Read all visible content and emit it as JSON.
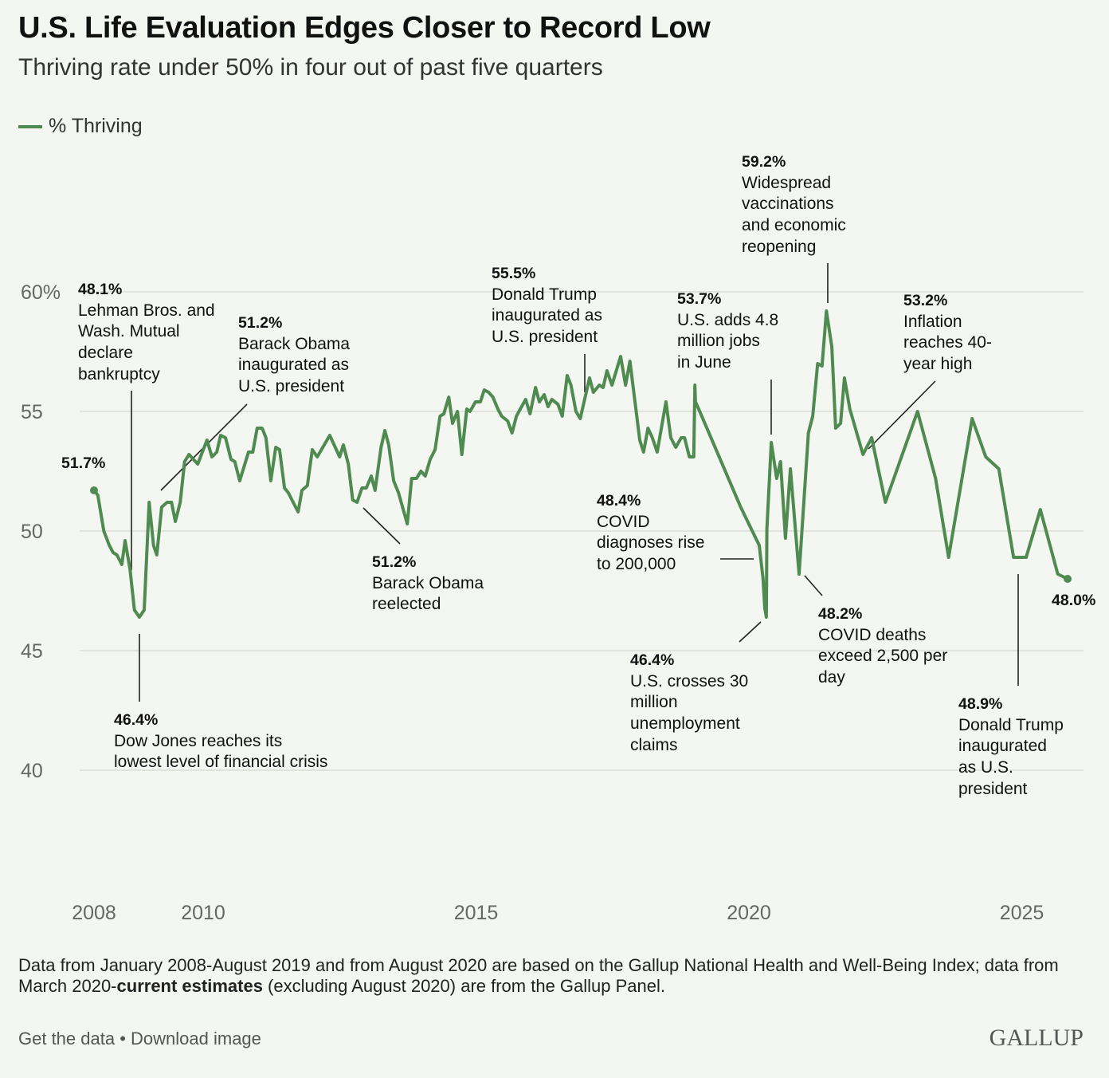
{
  "colors": {
    "line": "#4f8a50",
    "grid": "#d9ddd6",
    "background": "#f3f6f1",
    "axis_text": "#666666"
  },
  "chart_data": {
    "type": "line",
    "title": "U.S. Life Evaluation Edges Closer to Record Low",
    "subtitle": "Thriving rate under 50% in four out of past five quarters",
    "legend": [
      {
        "label": "% Thriving",
        "placement": "top-left"
      }
    ],
    "xlabel": "",
    "ylabel": "",
    "xlim": [
      2008,
      2026.2
    ],
    "ylim": [
      35,
      62
    ],
    "y_ticks": [
      {
        "value": 60,
        "label": "60%"
      },
      {
        "value": 55,
        "label": "55"
      },
      {
        "value": 50,
        "label": "50"
      },
      {
        "value": 45,
        "label": "45"
      },
      {
        "value": 40,
        "label": "40"
      }
    ],
    "x_ticks": [
      {
        "value": 2008,
        "label": "2008"
      },
      {
        "value": 2010,
        "label": "2010"
      },
      {
        "value": 2015,
        "label": "2015"
      },
      {
        "value": 2020,
        "label": "2020"
      },
      {
        "value": 2025,
        "label": "2025"
      }
    ],
    "grid": true,
    "series": [
      {
        "name": "% Thriving",
        "points": [
          [
            2008.0,
            51.7
          ],
          [
            2008.07,
            51.5
          ],
          [
            2008.18,
            50.0
          ],
          [
            2008.28,
            49.4
          ],
          [
            2008.35,
            49.1
          ],
          [
            2008.42,
            49.0
          ],
          [
            2008.51,
            48.6
          ],
          [
            2008.57,
            49.6
          ],
          [
            2008.66,
            48.4
          ],
          [
            2008.74,
            46.7
          ],
          [
            2008.83,
            46.4
          ],
          [
            2008.92,
            46.7
          ],
          [
            2009.01,
            51.2
          ],
          [
            2009.09,
            49.4
          ],
          [
            2009.15,
            49.0
          ],
          [
            2009.24,
            51.0
          ],
          [
            2009.34,
            51.2
          ],
          [
            2009.42,
            51.2
          ],
          [
            2009.49,
            50.4
          ],
          [
            2009.58,
            51.2
          ],
          [
            2009.66,
            52.9
          ],
          [
            2009.74,
            53.2
          ],
          [
            2009.9,
            52.8
          ],
          [
            2010.07,
            53.8
          ],
          [
            2010.16,
            53.1
          ],
          [
            2010.25,
            53.3
          ],
          [
            2010.32,
            54.0
          ],
          [
            2010.41,
            53.9
          ],
          [
            2010.51,
            53.0
          ],
          [
            2010.58,
            52.9
          ],
          [
            2010.67,
            52.1
          ],
          [
            2010.83,
            53.3
          ],
          [
            2010.91,
            53.3
          ],
          [
            2010.99,
            54.3
          ],
          [
            2011.08,
            54.3
          ],
          [
            2011.15,
            53.9
          ],
          [
            2011.24,
            52.1
          ],
          [
            2011.33,
            53.5
          ],
          [
            2011.4,
            53.4
          ],
          [
            2011.49,
            51.8
          ],
          [
            2011.56,
            51.6
          ],
          [
            2011.65,
            51.2
          ],
          [
            2011.74,
            50.8
          ],
          [
            2011.81,
            51.7
          ],
          [
            2011.91,
            51.9
          ],
          [
            2012.0,
            53.4
          ],
          [
            2012.09,
            53.1
          ],
          [
            2012.32,
            54.0
          ],
          [
            2012.5,
            53.1
          ],
          [
            2012.57,
            53.6
          ],
          [
            2012.66,
            52.8
          ],
          [
            2012.74,
            51.3
          ],
          [
            2012.82,
            51.2
          ],
          [
            2012.91,
            51.8
          ],
          [
            2012.99,
            51.8
          ],
          [
            2013.08,
            52.3
          ],
          [
            2013.15,
            51.7
          ],
          [
            2013.26,
            53.5
          ],
          [
            2013.33,
            54.2
          ],
          [
            2013.4,
            53.6
          ],
          [
            2013.49,
            52.1
          ],
          [
            2013.58,
            51.6
          ],
          [
            2013.74,
            50.3
          ],
          [
            2013.82,
            52.2
          ],
          [
            2013.91,
            52.2
          ],
          [
            2013.99,
            52.5
          ],
          [
            2014.07,
            52.3
          ],
          [
            2014.16,
            53.0
          ],
          [
            2014.25,
            53.4
          ],
          [
            2014.34,
            54.8
          ],
          [
            2014.41,
            54.9
          ],
          [
            2014.5,
            55.6
          ],
          [
            2014.57,
            54.5
          ],
          [
            2014.66,
            55.0
          ],
          [
            2014.74,
            53.2
          ],
          [
            2014.83,
            55.1
          ],
          [
            2014.89,
            55.0
          ],
          [
            2014.99,
            55.4
          ],
          [
            2015.08,
            55.4
          ],
          [
            2015.15,
            55.9
          ],
          [
            2015.23,
            55.8
          ],
          [
            2015.31,
            55.6
          ],
          [
            2015.4,
            55.1
          ],
          [
            2015.47,
            54.8
          ],
          [
            2015.58,
            54.6
          ],
          [
            2015.66,
            54.1
          ],
          [
            2015.74,
            54.8
          ],
          [
            2015.81,
            55.1
          ],
          [
            2015.91,
            55.5
          ],
          [
            2015.99,
            54.9
          ],
          [
            2016.09,
            56.0
          ],
          [
            2016.16,
            55.4
          ],
          [
            2016.25,
            55.7
          ],
          [
            2016.32,
            55.2
          ],
          [
            2016.39,
            55.5
          ],
          [
            2016.5,
            55.3
          ],
          [
            2016.58,
            54.8
          ],
          [
            2016.67,
            56.5
          ],
          [
            2016.74,
            56.1
          ],
          [
            2016.83,
            55.0
          ],
          [
            2016.91,
            54.7
          ],
          [
            2017.08,
            56.4
          ],
          [
            2017.15,
            55.8
          ],
          [
            2017.26,
            56.1
          ],
          [
            2017.33,
            56.0
          ],
          [
            2017.4,
            56.7
          ],
          [
            2017.49,
            56.1
          ],
          [
            2017.65,
            57.3
          ],
          [
            2017.74,
            56.1
          ],
          [
            2017.82,
            57.1
          ],
          [
            2018.0,
            53.8
          ],
          [
            2018.07,
            53.3
          ],
          [
            2018.15,
            54.3
          ],
          [
            2018.23,
            53.9
          ],
          [
            2018.32,
            53.3
          ],
          [
            2018.48,
            55.4
          ],
          [
            2018.57,
            53.9
          ],
          [
            2018.66,
            53.5
          ],
          [
            2018.76,
            53.9
          ],
          [
            2018.82,
            53.9
          ],
          [
            2018.91,
            53.1
          ],
          [
            2018.99,
            53.1
          ],
          [
            2019.01,
            56.1
          ],
          [
            2019.02,
            55.4
          ],
          [
            2019.08,
            55.1
          ],
          [
            2019.85,
            51.0
          ],
          [
            2020.19,
            49.4
          ],
          [
            2020.26,
            48.0
          ],
          [
            2020.29,
            46.8
          ],
          [
            2020.32,
            46.4
          ],
          [
            2020.33,
            50.1
          ],
          [
            2020.41,
            53.7
          ],
          [
            2020.51,
            52.2
          ],
          [
            2020.58,
            52.9
          ],
          [
            2020.67,
            49.7
          ],
          [
            2020.76,
            52.6
          ],
          [
            2020.92,
            48.2
          ],
          [
            2021.09,
            54.1
          ],
          [
            2021.17,
            54.8
          ],
          [
            2021.26,
            57.0
          ],
          [
            2021.34,
            56.9
          ],
          [
            2021.42,
            59.2
          ],
          [
            2021.52,
            57.7
          ],
          [
            2021.59,
            54.3
          ],
          [
            2021.68,
            54.5
          ],
          [
            2021.75,
            56.4
          ],
          [
            2021.85,
            55.1
          ],
          [
            2022.09,
            53.2
          ],
          [
            2022.25,
            53.9
          ],
          [
            2022.5,
            51.2
          ],
          [
            2023.09,
            55.0
          ],
          [
            2023.42,
            52.2
          ],
          [
            2023.66,
            48.9
          ],
          [
            2024.09,
            54.7
          ],
          [
            2024.34,
            53.1
          ],
          [
            2024.58,
            52.6
          ],
          [
            2024.85,
            48.9
          ],
          [
            2025.08,
            48.9
          ],
          [
            2025.34,
            50.9
          ],
          [
            2025.66,
            48.2
          ],
          [
            2025.84,
            48.0
          ]
        ]
      }
    ],
    "annotations": [
      {
        "value": "51.7%",
        "text": []
      },
      {
        "value": "48.1%",
        "text": [
          "Lehman Bros. and",
          "Wash. Mutual",
          "declare",
          "bankruptcy"
        ]
      },
      {
        "value": "51.2%",
        "text": [
          "Barack Obama",
          "inaugurated as",
          "U.S. president"
        ]
      },
      {
        "value": "55.5%",
        "text": [
          "Donald Trump",
          "inaugurated as",
          "U.S. president"
        ]
      },
      {
        "value": "53.7%",
        "text": [
          "U.S. adds 4.8",
          "million jobs",
          "in June"
        ]
      },
      {
        "value": "59.2%",
        "text": [
          "Widespread",
          "vaccinations",
          "and economic",
          "reopening"
        ]
      },
      {
        "value": "53.2%",
        "text": [
          "Inflation",
          "reaches 40-",
          "year high"
        ]
      },
      {
        "value": "51.2%",
        "text": [
          "Barack Obama",
          "reelected"
        ]
      },
      {
        "value": "48.4%",
        "text": [
          "COVID",
          "diagnoses rise",
          "to 200,000"
        ]
      },
      {
        "value": "46.4%",
        "text": [
          "U.S. crosses 30",
          "million",
          "unemployment",
          "claims"
        ]
      },
      {
        "value": "48.2%",
        "text": [
          "COVID deaths",
          "exceed 2,500 per",
          "day"
        ]
      },
      {
        "value": "46.4%",
        "text": [
          "Dow Jones reaches its",
          "lowest level of financial crisis"
        ]
      },
      {
        "value": "48.9%",
        "text": [
          "Donald Trump",
          "inaugurated",
          "as U.S.",
          "president"
        ]
      },
      {
        "value": "48.0%",
        "text": []
      }
    ]
  },
  "footer": {
    "note_pre": "Data from January 2008-August 2019 and from August 2020 are based on the Gallup National Health and Well-Being Index; data from March 2020-",
    "note_bold": "current estimates",
    "note_post": " (excluding August 2020) are from the Gallup Panel.",
    "get_data": "Get the data",
    "separator": " • ",
    "download": "Download image",
    "logo": "GALLUP"
  }
}
